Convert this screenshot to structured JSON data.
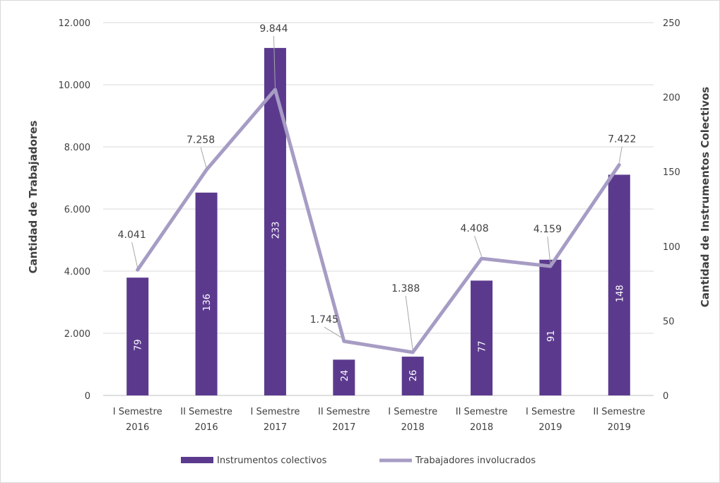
{
  "chart_data": {
    "type": "bar",
    "categories": [
      [
        "I Semestre",
        "2016"
      ],
      [
        "II Semestre",
        "2016"
      ],
      [
        "I Semestre",
        "2017"
      ],
      [
        "II Semestre",
        "2017"
      ],
      [
        "I Semestre",
        "2018"
      ],
      [
        "II Semestre",
        "2018"
      ],
      [
        "I Semestre",
        "2019"
      ],
      [
        "II Semestre",
        "2019"
      ]
    ],
    "series": [
      {
        "name": "Instrumentos colectivos",
        "type": "bar",
        "axis": "right",
        "values": [
          79,
          136,
          233,
          24,
          26,
          77,
          91,
          148
        ],
        "labels": [
          "79",
          "136",
          "233",
          "24",
          "26",
          "77",
          "91",
          "148"
        ],
        "color": "#5b3a8e"
      },
      {
        "name": "Trabajadores involucrados",
        "type": "line",
        "axis": "left",
        "values": [
          4041,
          7258,
          9844,
          1745,
          1388,
          4408,
          4159,
          7422
        ],
        "labels": [
          "4.041",
          "7.258",
          "9.844",
          "1.745",
          "1.388",
          "4.408",
          "4.159",
          "7.422"
        ],
        "color": "#a79cc4"
      }
    ],
    "left_axis": {
      "label": "Cantidad de Trabajadores",
      "ylim": [
        0,
        12000
      ],
      "ticks": [
        "0",
        "2.000",
        "4.000",
        "6.000",
        "8.000",
        "10.000",
        "12.000"
      ]
    },
    "right_axis": {
      "label": "Cantidad de Instrumentos Colectivos",
      "ylim": [
        0,
        250
      ],
      "ticks": [
        "0",
        "50",
        "100",
        "150",
        "200",
        "250"
      ]
    },
    "grid": true,
    "legend": "bottom"
  }
}
